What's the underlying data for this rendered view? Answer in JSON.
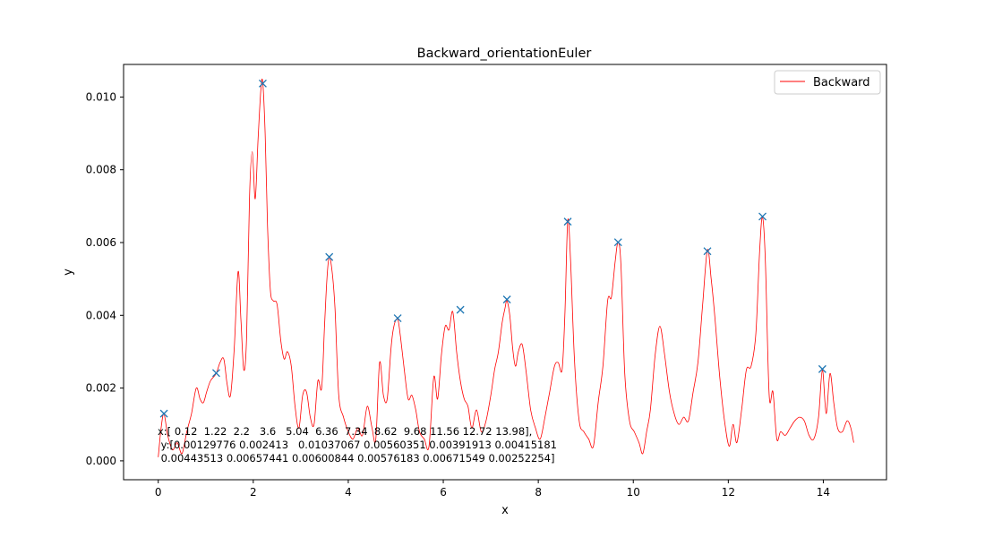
{
  "chart_data": {
    "type": "line",
    "title": "Backward_orientationEuler",
    "xlabel": "x",
    "ylabel": "y",
    "xlim": [
      -0.73,
      15.33
    ],
    "ylim": [
      -0.000519,
      0.010895
    ],
    "x_ticks": [
      0,
      2,
      4,
      6,
      8,
      10,
      12,
      14
    ],
    "x_tick_labels": [
      "0",
      "2",
      "4",
      "6",
      "8",
      "10",
      "12",
      "14"
    ],
    "y_ticks": [
      0,
      0.002,
      0.004,
      0.006,
      0.008,
      0.01
    ],
    "y_tick_labels": [
      "0.000",
      "0.002",
      "0.004",
      "0.006",
      "0.008",
      "0.010"
    ],
    "grid": false,
    "legend_position": "upper right",
    "series": [
      {
        "name": "Backward",
        "color": "#ff0000",
        "x": [
          0.0,
          0.06,
          0.12,
          0.2,
          0.3,
          0.4,
          0.5,
          0.6,
          0.7,
          0.8,
          0.88,
          0.95,
          1.02,
          1.1,
          1.22,
          1.3,
          1.38,
          1.45,
          1.52,
          1.6,
          1.68,
          1.74,
          1.8,
          1.86,
          1.92,
          1.98,
          2.04,
          2.1,
          2.16,
          2.2,
          2.25,
          2.3,
          2.36,
          2.42,
          2.5,
          2.58,
          2.65,
          2.72,
          2.8,
          2.88,
          2.96,
          3.04,
          3.12,
          3.2,
          3.28,
          3.36,
          3.44,
          3.5,
          3.55,
          3.6,
          3.66,
          3.72,
          3.8,
          3.9,
          4.0,
          4.1,
          4.2,
          4.3,
          4.4,
          4.5,
          4.58,
          4.66,
          4.74,
          4.82,
          4.9,
          4.96,
          5.04,
          5.1,
          5.18,
          5.26,
          5.34,
          5.42,
          5.5,
          5.6,
          5.7,
          5.8,
          5.88,
          5.96,
          6.04,
          6.12,
          6.2,
          6.28,
          6.36,
          6.44,
          6.52,
          6.6,
          6.7,
          6.8,
          6.9,
          7.0,
          7.08,
          7.16,
          7.24,
          7.3,
          7.34,
          7.4,
          7.46,
          7.52,
          7.58,
          7.66,
          7.74,
          7.84,
          7.94,
          8.04,
          8.14,
          8.24,
          8.34,
          8.42,
          8.5,
          8.56,
          8.62,
          8.68,
          8.76,
          8.86,
          8.96,
          9.06,
          9.16,
          9.26,
          9.36,
          9.46,
          9.54,
          9.62,
          9.68,
          9.74,
          9.82,
          9.92,
          10.02,
          10.12,
          10.2,
          10.28,
          10.36,
          10.46,
          10.56,
          10.66,
          10.76,
          10.86,
          10.96,
          11.06,
          11.16,
          11.26,
          11.36,
          11.46,
          11.56,
          11.64,
          11.72,
          11.82,
          11.92,
          12.02,
          12.1,
          12.18,
          12.28,
          12.38,
          12.48,
          12.58,
          12.66,
          12.72,
          12.78,
          12.86,
          12.94,
          13.02,
          13.1,
          13.2,
          13.3,
          13.4,
          13.5,
          13.6,
          13.7,
          13.8,
          13.9,
          13.98,
          14.06,
          14.14,
          14.22,
          14.3,
          14.4,
          14.5,
          14.58,
          14.64
        ],
        "y": [
          0.0001,
          0.0009,
          0.0013,
          0.0007,
          0.0003,
          0.0005,
          0.0002,
          0.0008,
          0.0013,
          0.002,
          0.0017,
          0.0016,
          0.0019,
          0.0022,
          0.0024,
          0.0027,
          0.0028,
          0.0021,
          0.0018,
          0.0031,
          0.0052,
          0.0039,
          0.0025,
          0.0034,
          0.0072,
          0.0085,
          0.0072,
          0.0088,
          0.0102,
          0.0104,
          0.009,
          0.0065,
          0.0047,
          0.0044,
          0.0043,
          0.0033,
          0.0028,
          0.003,
          0.0026,
          0.0015,
          0.0009,
          0.0018,
          0.0019,
          0.0012,
          0.001,
          0.0022,
          0.002,
          0.0037,
          0.005,
          0.0056,
          0.0052,
          0.0042,
          0.0018,
          0.0012,
          0.0008,
          0.0006,
          0.0009,
          0.0007,
          0.0015,
          0.0009,
          0.0006,
          0.0027,
          0.0018,
          0.0017,
          0.0031,
          0.0037,
          0.0039,
          0.0034,
          0.0025,
          0.0017,
          0.0018,
          0.0014,
          0.0008,
          0.0006,
          0.0004,
          0.0023,
          0.0017,
          0.0029,
          0.0037,
          0.0036,
          0.0041,
          0.003,
          0.0022,
          0.0017,
          0.0015,
          0.0009,
          0.0014,
          0.0008,
          0.0011,
          0.0018,
          0.0025,
          0.003,
          0.0038,
          0.0042,
          0.0044,
          0.004,
          0.0031,
          0.0026,
          0.003,
          0.0032,
          0.0025,
          0.0014,
          0.0009,
          0.0006,
          0.0012,
          0.0019,
          0.0026,
          0.0027,
          0.0025,
          0.004,
          0.0066,
          0.0055,
          0.0028,
          0.0011,
          0.0008,
          0.0006,
          0.0004,
          0.0016,
          0.0026,
          0.0044,
          0.0045,
          0.0055,
          0.006,
          0.0054,
          0.0024,
          0.0011,
          0.0008,
          0.0005,
          0.0002,
          0.0008,
          0.0014,
          0.0029,
          0.0037,
          0.0029,
          0.0019,
          0.0013,
          0.001,
          0.0012,
          0.0011,
          0.0019,
          0.0027,
          0.0043,
          0.0058,
          0.005,
          0.0039,
          0.0023,
          0.0011,
          0.0004,
          0.001,
          0.0005,
          0.0014,
          0.0025,
          0.0026,
          0.0035,
          0.0058,
          0.0067,
          0.0055,
          0.0018,
          0.0019,
          0.0006,
          0.0008,
          0.0007,
          0.0009,
          0.0011,
          0.0012,
          0.0011,
          0.0007,
          0.0006,
          0.0012,
          0.0025,
          0.0013,
          0.0024,
          0.0016,
          0.0009,
          0.0008,
          0.0011,
          0.0009,
          0.0005
        ]
      },
      {
        "marker": "x",
        "color": "#1f77b4",
        "x": [
          0.12,
          1.22,
          2.2,
          3.6,
          5.04,
          6.36,
          7.34,
          8.62,
          9.68,
          11.56,
          12.72,
          13.98
        ],
        "y": [
          0.00129776,
          0.002413,
          0.01037067,
          0.00560351,
          0.00391913,
          0.00415181,
          0.00443513,
          0.00657441,
          0.00600844,
          0.00576183,
          0.00671549,
          0.00252254
        ]
      }
    ],
    "annotation": {
      "lines": [
        "x:[ 0.12  1.22  2.2   3.6   5.04  6.36  7.34  8.62  9.68 11.56 12.72 13.98],",
        " y:[0.00129776 0.002413   0.01037067 0.00560351 0.00391913 0.00415181",
        " 0.00443513 0.00657441 0.00600844 0.00576183 0.00671549 0.00252254]"
      ]
    }
  }
}
